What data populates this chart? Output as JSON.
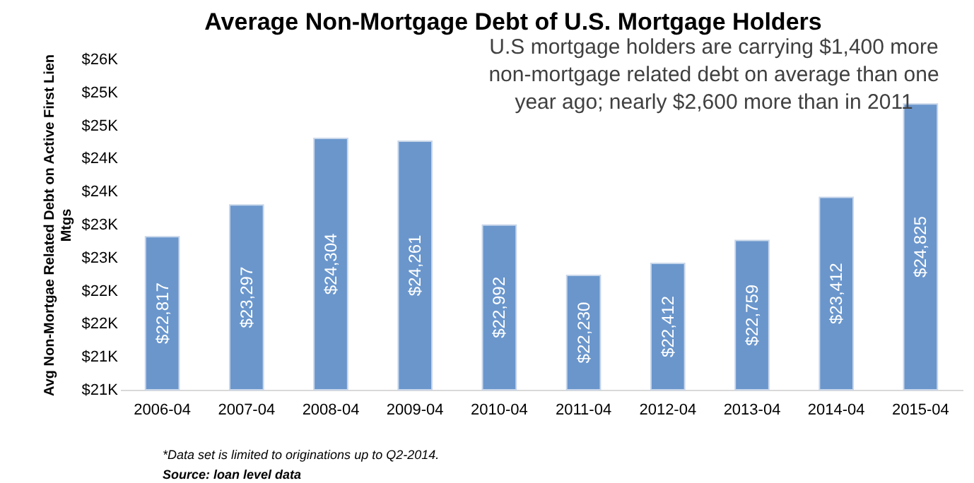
{
  "chart_data": {
    "type": "bar",
    "title": "Average Non-Mortgage Debt of U.S. Mortgage Holders",
    "ylabel": "Avg Non-Mortgae Related Debt on Active First Lien Mtgs",
    "categories": [
      "2006-04",
      "2007-04",
      "2008-04",
      "2009-04",
      "2010-04",
      "2011-04",
      "2012-04",
      "2013-04",
      "2014-04",
      "2015-04"
    ],
    "values": [
      22817,
      23297,
      24304,
      24261,
      22992,
      22230,
      22412,
      22759,
      23412,
      24825
    ],
    "value_labels": [
      "$22,817",
      "$23,297",
      "$24,304",
      "$24,261",
      "$22,992",
      "$22,230",
      "$22,412",
      "$22,759",
      "$23,412",
      "$24,825"
    ],
    "color": "#6a96cc",
    "ylim": [
      20500,
      25500
    ],
    "yticks": [
      {
        "value": 20500,
        "label": "$21K"
      },
      {
        "value": 21000,
        "label": "$21K"
      },
      {
        "value": 21500,
        "label": "$22K"
      },
      {
        "value": 22000,
        "label": "$22K"
      },
      {
        "value": 22500,
        "label": "$23K"
      },
      {
        "value": 23000,
        "label": "$23K"
      },
      {
        "value": 23500,
        "label": "$24K"
      },
      {
        "value": 24000,
        "label": "$24K"
      },
      {
        "value": 24500,
        "label": "$25K"
      },
      {
        "value": 25000,
        "label": "$25K"
      },
      {
        "value": 25500,
        "label": "$26K"
      }
    ],
    "grid": false,
    "annotations": [
      "U.S mortgage holders are carrying $1,400 more\nnon-mortgage related debt on average than one\nyear ago; nearly $2,600 more than in 2011",
      "*Data set is limited to originations up to Q2-2014.",
      "Source: loan level data"
    ]
  }
}
